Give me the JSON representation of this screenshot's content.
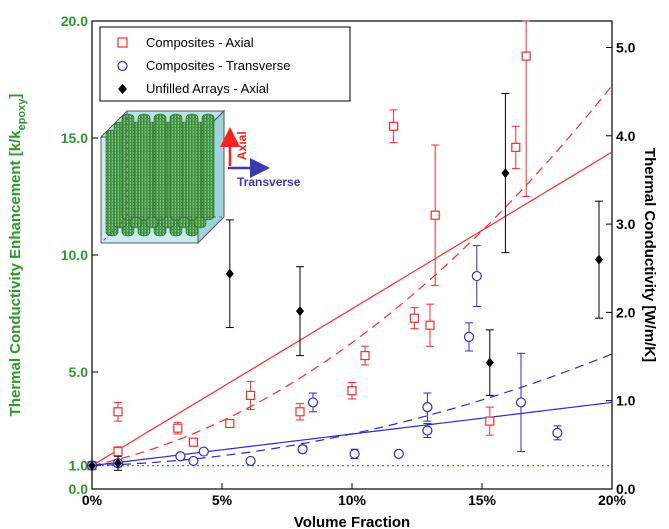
{
  "chart_data": {
    "type": "scatter",
    "xlabel": "Volume Fraction",
    "ylabel_left": "Thermal Conductivity Enhancement [k/k",
    "ylabel_left_sub": "epoxy",
    "ylabel_left_end": "]",
    "ylabel_right": "Thermal Conductivity [W/m/K]",
    "xlim": [
      0,
      20
    ],
    "ylim_left": [
      0,
      20
    ],
    "ylim_right": [
      0,
      5.3
    ],
    "x_ticks": [
      0,
      5,
      10,
      15,
      20
    ],
    "x_tick_labels": [
      "0%",
      "5%",
      "10%",
      "15%",
      "20%"
    ],
    "y_left_ticks": [
      0,
      1,
      5,
      10,
      15,
      20
    ],
    "y_left_tick_labels": [
      "0.0",
      "1.0",
      "5.0",
      "10.0",
      "15.0",
      "20.0"
    ],
    "y_right_ticks": [
      0,
      1,
      2,
      3,
      4,
      5
    ],
    "y_right_tick_labels": [
      "0.0",
      "1.0",
      "2.0",
      "3.0",
      "4.0",
      "5.0"
    ],
    "baseline": {
      "y": 1.0,
      "color": "#3a9a3a"
    },
    "series": [
      {
        "name": "Composites - Axial",
        "marker": "square",
        "color": "#ff2a2a",
        "points": [
          {
            "x": 0,
            "y": 1.0,
            "err": 0.1
          },
          {
            "x": 1.0,
            "y": 1.6,
            "err": 0.2
          },
          {
            "x": 1.0,
            "y": 3.3,
            "err": 0.4
          },
          {
            "x": 3.3,
            "y": 2.6,
            "err": 0.25
          },
          {
            "x": 3.9,
            "y": 2.0,
            "err": 0.15
          },
          {
            "x": 5.3,
            "y": 2.8,
            "err": 0.1
          },
          {
            "x": 6.1,
            "y": 4.0,
            "err": 0.6
          },
          {
            "x": 8.0,
            "y": 3.3,
            "err": 0.35
          },
          {
            "x": 10.0,
            "y": 4.2,
            "err": 0.35
          },
          {
            "x": 10.5,
            "y": 5.7,
            "err": 0.4
          },
          {
            "x": 11.6,
            "y": 15.5,
            "err": 0.7
          },
          {
            "x": 12.4,
            "y": 7.3,
            "err": 0.45
          },
          {
            "x": 13.0,
            "y": 7.0,
            "err": 0.9
          },
          {
            "x": 13.2,
            "y": 11.7,
            "err": 3.0
          },
          {
            "x": 15.3,
            "y": 2.9,
            "err": 0.6
          },
          {
            "x": 16.3,
            "y": 14.6,
            "err": 0.9
          },
          {
            "x": 16.7,
            "y": 18.5,
            "err": 6.0
          }
        ]
      },
      {
        "name": "Composites - Transverse",
        "marker": "circle",
        "color": "#2a2ad0",
        "points": [
          {
            "x": 0,
            "y": 1.0,
            "err": 0.1
          },
          {
            "x": 1.0,
            "y": 1.1,
            "err": 0.15
          },
          {
            "x": 3.4,
            "y": 1.4,
            "err": 0.1
          },
          {
            "x": 3.9,
            "y": 1.2,
            "err": 0.1
          },
          {
            "x": 4.3,
            "y": 1.6,
            "err": 0.1
          },
          {
            "x": 6.1,
            "y": 1.2,
            "err": 0.1
          },
          {
            "x": 8.1,
            "y": 1.7,
            "err": 0.15
          },
          {
            "x": 8.5,
            "y": 3.7,
            "err": 0.4
          },
          {
            "x": 10.1,
            "y": 1.5,
            "err": 0.2
          },
          {
            "x": 11.8,
            "y": 1.5,
            "err": 0.1
          },
          {
            "x": 12.9,
            "y": 2.5,
            "err": 0.3
          },
          {
            "x": 12.9,
            "y": 3.5,
            "err": 0.6
          },
          {
            "x": 14.5,
            "y": 6.5,
            "err": 0.6
          },
          {
            "x": 14.8,
            "y": 9.1,
            "err": 1.3
          },
          {
            "x": 16.5,
            "y": 3.7,
            "err": 2.1
          },
          {
            "x": 17.9,
            "y": 2.4,
            "err": 0.3
          }
        ]
      },
      {
        "name": "Unfilled Arrays - Axial",
        "marker": "diamond",
        "color": "#000000",
        "points": [
          {
            "x": 0,
            "y": 1.0,
            "err": 0.1
          },
          {
            "x": 1.0,
            "y": 1.1,
            "err": 0.3
          },
          {
            "x": 5.3,
            "y": 9.2,
            "err": 2.3
          },
          {
            "x": 8.0,
            "y": 7.6,
            "err": 1.9
          },
          {
            "x": 15.3,
            "y": 5.4,
            "err": 1.4
          },
          {
            "x": 15.9,
            "y": 13.5,
            "err": 3.4
          },
          {
            "x": 19.5,
            "y": 9.8,
            "err": 2.5
          }
        ]
      }
    ],
    "fits": [
      {
        "style": "solid",
        "color": "#ff2a2a",
        "fn": "linear",
        "a": 0.67
      },
      {
        "style": "dashed",
        "color": "#ff2a2a",
        "fn": "quadratic",
        "a": 0.238,
        "b": 0.0287
      },
      {
        "style": "solid",
        "color": "#2a2ad0",
        "fn": "linear",
        "a": 0.135
      },
      {
        "style": "dashed",
        "color": "#2a2ad0",
        "fn": "quadratic",
        "a": 0.0325,
        "b": 0.0103
      }
    ],
    "legend": {
      "position": "top-left"
    },
    "inset": {
      "axial_label": "Axial",
      "transverse_label": "Transverse"
    }
  }
}
